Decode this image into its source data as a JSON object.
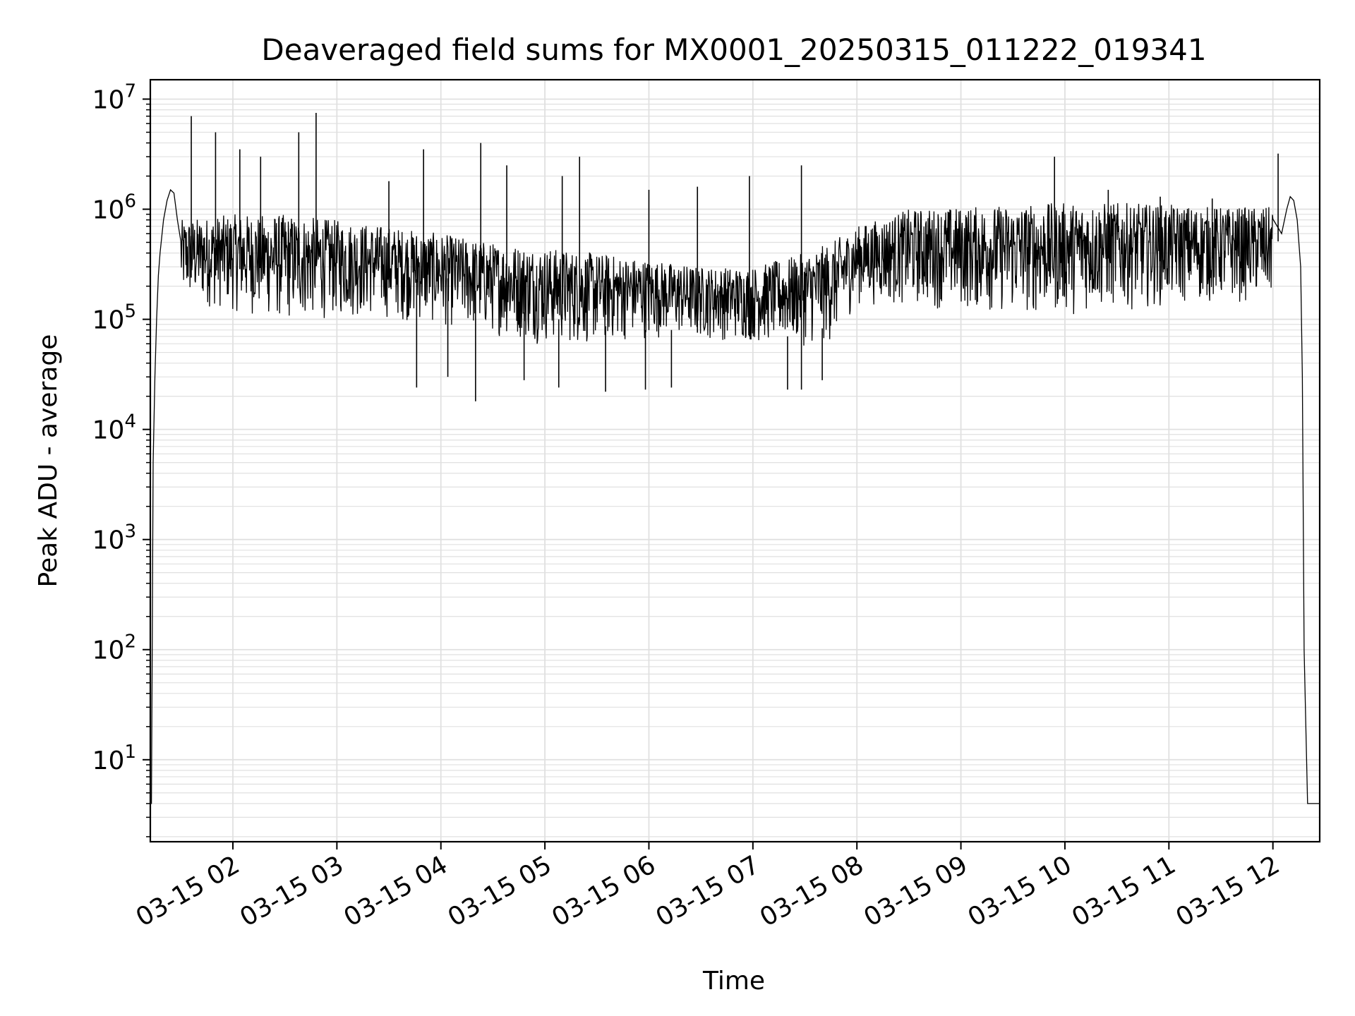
{
  "chart_data": {
    "type": "line",
    "title": "Deaveraged field sums for MX0001_20250315_011222_019341",
    "xlabel": "Time",
    "ylabel": "Peak ADU - average",
    "yscale": "log",
    "xlim": [
      "2025-03-15 01:12:22",
      "2025-03-15 12:27:00"
    ],
    "ylim": [
      1.8,
      15000000
    ],
    "grid": true,
    "line_color": "#000000",
    "grid_color": "#e0e0e0",
    "x_tick_labels": [
      "03-15 02",
      "03-15 03",
      "03-15 04",
      "03-15 05",
      "03-15 06",
      "03-15 07",
      "03-15 08",
      "03-15 09",
      "03-15 10",
      "03-15 11",
      "03-15 12"
    ],
    "x_tick_times": [
      "2025-03-15 02:00",
      "2025-03-15 03:00",
      "2025-03-15 04:00",
      "2025-03-15 05:00",
      "2025-03-15 06:00",
      "2025-03-15 07:00",
      "2025-03-15 08:00",
      "2025-03-15 09:00",
      "2025-03-15 10:00",
      "2025-03-15 11:00",
      "2025-03-15 12:00"
    ],
    "y_tick_values": [
      10,
      100,
      1000,
      10000,
      100000,
      1000000,
      10000000
    ],
    "y_tick_labels": [
      {
        "base": "10",
        "exp": "1"
      },
      {
        "base": "10",
        "exp": "2"
      },
      {
        "base": "10",
        "exp": "3"
      },
      {
        "base": "10",
        "exp": "4"
      },
      {
        "base": "10",
        "exp": "5"
      },
      {
        "base": "10",
        "exp": "6"
      },
      {
        "base": "10",
        "exp": "7"
      }
    ],
    "series": [
      {
        "x": [
          "2025-03-15 01:12:22",
          "2025-03-15 01:13:00",
          "2025-03-15 01:14:00",
          "2025-03-15 01:15:00",
          "2025-03-15 01:16:00",
          "2025-03-15 01:17:00",
          "2025-03-15 01:18:00",
          "2025-03-15 01:20:00",
          "2025-03-15 01:22:00",
          "2025-03-15 01:24:00",
          "2025-03-15 01:26:00",
          "2025-03-15 01:28:00",
          "2025-03-15 01:30:00",
          "2025-03-15 01:32:00",
          "2025-03-15 01:35:00",
          "2025-03-15 01:40:00",
          "2025-03-15 01:45:00",
          "2025-03-15 01:50:00",
          "2025-03-15 02:00:00",
          "2025-03-15 02:15:00",
          "2025-03-15 02:30:00",
          "2025-03-15 02:45:00",
          "2025-03-15 03:00:00",
          "2025-03-15 03:15:00",
          "2025-03-15 03:30:00",
          "2025-03-15 03:45:00",
          "2025-03-15 04:00:00",
          "2025-03-15 04:15:00",
          "2025-03-15 04:30:00",
          "2025-03-15 04:45:00",
          "2025-03-15 05:00:00",
          "2025-03-15 05:15:00",
          "2025-03-15 05:30:00",
          "2025-03-15 05:45:00",
          "2025-03-15 06:00:00",
          "2025-03-15 06:15:00",
          "2025-03-15 06:30:00",
          "2025-03-15 06:45:00",
          "2025-03-15 07:00:00",
          "2025-03-15 07:15:00",
          "2025-03-15 07:30:00",
          "2025-03-15 07:45:00",
          "2025-03-15 08:00:00",
          "2025-03-15 08:15:00",
          "2025-03-15 08:30:00",
          "2025-03-15 08:45:00",
          "2025-03-15 09:00:00",
          "2025-03-15 09:15:00",
          "2025-03-15 09:30:00",
          "2025-03-15 09:45:00",
          "2025-03-15 10:00:00",
          "2025-03-15 10:15:00",
          "2025-03-15 10:30:00",
          "2025-03-15 10:45:00",
          "2025-03-15 11:00:00",
          "2025-03-15 11:15:00",
          "2025-03-15 11:30:00",
          "2025-03-15 11:45:00",
          "2025-03-15 12:00:00",
          "2025-03-15 12:05:00",
          "2025-03-15 12:08:00",
          "2025-03-15 12:10:00",
          "2025-03-15 12:12:00",
          "2025-03-15 12:14:00",
          "2025-03-15 12:16:00",
          "2025-03-15 12:17:00",
          "2025-03-15 12:18:00",
          "2025-03-15 12:20:00",
          "2025-03-15 12:24:00",
          "2025-03-15 12:27:00"
        ],
        "y": [
          4,
          4,
          5000,
          30000,
          100000,
          250000,
          400000,
          800000,
          1200000,
          1500000,
          1400000,
          800000,
          400000,
          300000,
          250000,
          200000,
          220000,
          250000,
          280000,
          300000,
          320000,
          300000,
          320000,
          250000,
          250000,
          230000,
          250000,
          200000,
          150000,
          120000,
          100000,
          100000,
          90000,
          80000,
          80000,
          80000,
          75000,
          70000,
          70000,
          70000,
          70000,
          90000,
          180000,
          300000,
          350000,
          330000,
          300000,
          330000,
          350000,
          350000,
          380000,
          370000,
          350000,
          350000,
          330000,
          350000,
          360000,
          360000,
          400000,
          600000,
          1000000,
          1300000,
          1200000,
          800000,
          300000,
          30000,
          100,
          4,
          4,
          4
        ]
      }
    ],
    "envelope": {
      "x": [
        "2025-03-15 01:30:00",
        "2025-03-15 02:00:00",
        "2025-03-15 02:30:00",
        "2025-03-15 03:00:00",
        "2025-03-15 03:30:00",
        "2025-03-15 04:00:00",
        "2025-03-15 04:30:00",
        "2025-03-15 05:00:00",
        "2025-03-15 05:30:00",
        "2025-03-15 06:00:00",
        "2025-03-15 06:30:00",
        "2025-03-15 07:00:00",
        "2025-03-15 07:30:00",
        "2025-03-15 07:45:00",
        "2025-03-15 08:00:00",
        "2025-03-15 08:30:00",
        "2025-03-15 09:00:00",
        "2025-03-15 09:30:00",
        "2025-03-15 10:00:00",
        "2025-03-15 10:30:00",
        "2025-03-15 11:00:00",
        "2025-03-15 11:30:00",
        "2025-03-15 12:00:00"
      ],
      "upper": [
        800000,
        900000,
        900000,
        800000,
        700000,
        600000,
        500000,
        450000,
        400000,
        350000,
        300000,
        300000,
        400000,
        500000,
        700000,
        1000000,
        1050000,
        1100000,
        1150000,
        1150000,
        1100000,
        1050000,
        1050000
      ],
      "lower": [
        100000,
        80000,
        60000,
        70000,
        70000,
        60000,
        50000,
        40000,
        40000,
        50000,
        50000,
        45000,
        40000,
        40000,
        100000,
        90000,
        80000,
        70000,
        70000,
        80000,
        90000,
        95000,
        100000
      ]
    },
    "spikes": [
      {
        "x": "2025-03-15 01:36:00",
        "y": 7000000
      },
      {
        "x": "2025-03-15 01:50:00",
        "y": 5000000
      },
      {
        "x": "2025-03-15 02:04:00",
        "y": 3500000
      },
      {
        "x": "2025-03-15 02:16:00",
        "y": 3000000
      },
      {
        "x": "2025-03-15 02:38:00",
        "y": 5000000
      },
      {
        "x": "2025-03-15 02:48:00",
        "y": 7500000
      },
      {
        "x": "2025-03-15 03:30:00",
        "y": 1800000
      },
      {
        "x": "2025-03-15 03:50:00",
        "y": 3500000
      },
      {
        "x": "2025-03-15 04:23:00",
        "y": 4000000
      },
      {
        "x": "2025-03-15 04:38:00",
        "y": 2500000
      },
      {
        "x": "2025-03-15 05:10:00",
        "y": 2000000
      },
      {
        "x": "2025-03-15 05:20:00",
        "y": 3000000
      },
      {
        "x": "2025-03-15 06:00:00",
        "y": 1500000
      },
      {
        "x": "2025-03-15 06:28:00",
        "y": 1600000
      },
      {
        "x": "2025-03-15 06:58:00",
        "y": 2000000
      },
      {
        "x": "2025-03-15 07:28:00",
        "y": 2500000
      },
      {
        "x": "2025-03-15 09:54:00",
        "y": 3000000
      },
      {
        "x": "2025-03-15 10:25:00",
        "y": 1500000
      },
      {
        "x": "2025-03-15 10:55:00",
        "y": 1300000
      },
      {
        "x": "2025-03-15 11:25:00",
        "y": 1250000
      },
      {
        "x": "2025-03-15 12:03:00",
        "y": 3200000
      }
    ],
    "dips": [
      {
        "x": "2025-03-15 03:46:00",
        "y": 24000
      },
      {
        "x": "2025-03-15 04:04:00",
        "y": 30000
      },
      {
        "x": "2025-03-15 04:20:00",
        "y": 18000
      },
      {
        "x": "2025-03-15 04:48:00",
        "y": 28000
      },
      {
        "x": "2025-03-15 05:08:00",
        "y": 24000
      },
      {
        "x": "2025-03-15 05:35:00",
        "y": 22000
      },
      {
        "x": "2025-03-15 05:58:00",
        "y": 23000
      },
      {
        "x": "2025-03-15 06:13:00",
        "y": 24000
      },
      {
        "x": "2025-03-15 07:20:00",
        "y": 23000
      },
      {
        "x": "2025-03-15 07:28:00",
        "y": 23000
      },
      {
        "x": "2025-03-15 07:40:00",
        "y": 28000
      }
    ]
  }
}
